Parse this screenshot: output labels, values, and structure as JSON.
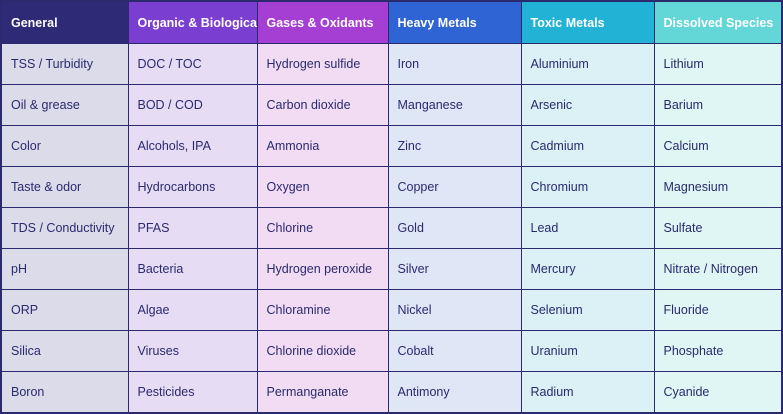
{
  "table": {
    "headers": [
      "General",
      "Organic & Biological",
      "Gases & Oxidants",
      "Heavy Metals",
      "Toxic Metals",
      "Dissolved Species"
    ],
    "rows": [
      [
        "TSS / Turbidity",
        "DOC / TOC",
        "Hydrogen sulfide",
        "Iron",
        "Aluminium",
        "Lithium"
      ],
      [
        "Oil & grease",
        "BOD / COD",
        "Carbon dioxide",
        "Manganese",
        "Arsenic",
        "Barium"
      ],
      [
        "Color",
        "Alcohols, IPA",
        "Ammonia",
        "Zinc",
        "Cadmium",
        "Calcium"
      ],
      [
        "Taste & odor",
        "Hydrocarbons",
        "Oxygen",
        "Copper",
        "Chromium",
        "Magnesium"
      ],
      [
        "TDS / Conductivity",
        "PFAS",
        "Chlorine",
        "Gold",
        "Lead",
        "Sulfate"
      ],
      [
        "pH",
        "Bacteria",
        "Hydrogen peroxide",
        "Silver",
        "Mercury",
        "Nitrate / Nitrogen"
      ],
      [
        "ORP",
        "Algae",
        "Chloramine",
        "Nickel",
        "Selenium",
        "Fluoride"
      ],
      [
        "Silica",
        "Viruses",
        "Chlorine dioxide",
        "Cobalt",
        "Uranium",
        "Phosphate"
      ],
      [
        "Boron",
        "Pesticides",
        "Permanganate",
        "Antimony",
        "Radium",
        "Cyanide"
      ]
    ]
  },
  "colors": {
    "border": "#2b2a6e",
    "text": "#2b2a6e",
    "header_general": "#2e2a75",
    "header_organic": "#7a3fd0",
    "header_gases": "#a53fd3",
    "header_heavy": "#2f64d4",
    "header_toxic": "#22b2d6",
    "header_dissolved": "#63d6d8"
  }
}
